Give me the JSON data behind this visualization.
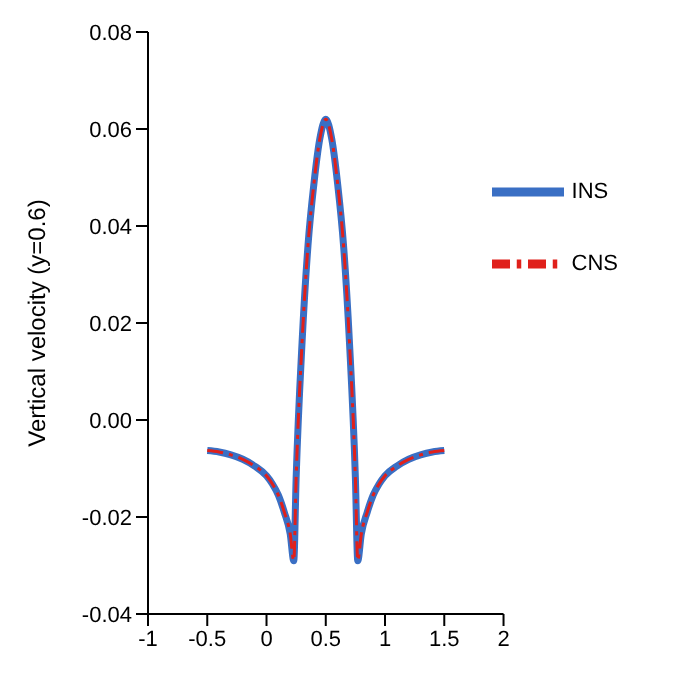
{
  "chart_data": {
    "type": "line",
    "ylabel": "Vertical velocity (y=0.6)",
    "x": [
      -0.5,
      -0.4,
      -0.3,
      -0.2,
      -0.1,
      0,
      0.05,
      0.1,
      0.15,
      0.2,
      0.23,
      0.25,
      0.3,
      0.35,
      0.4,
      0.45,
      0.5,
      0.55,
      0.6,
      0.65,
      0.7,
      0.75,
      0.77,
      0.8,
      0.85,
      0.9,
      0.95,
      1,
      1.1,
      1.2,
      1.3,
      1.4,
      1.5
    ],
    "series": [
      {
        "name": "INS",
        "color": "#3a6fc4",
        "line_style": "solid",
        "values": [
          -0.0063,
          -0.0066,
          -0.0072,
          -0.0081,
          -0.0095,
          -0.0115,
          -0.0132,
          -0.0155,
          -0.019,
          -0.0235,
          -0.029,
          -0.012,
          0.016,
          0.036,
          0.0487,
          0.058,
          0.062,
          0.058,
          0.0487,
          0.036,
          0.016,
          -0.012,
          -0.029,
          -0.0235,
          -0.019,
          -0.0155,
          -0.0132,
          -0.0115,
          -0.0095,
          -0.0081,
          -0.0072,
          -0.0066,
          -0.0063
        ]
      },
      {
        "name": "CNS",
        "color": "#e0201b",
        "line_style": "dashed",
        "values": [
          -0.0063,
          -0.0066,
          -0.0072,
          -0.0081,
          -0.0095,
          -0.0115,
          -0.0132,
          -0.0155,
          -0.019,
          -0.0235,
          -0.029,
          -0.012,
          0.016,
          0.036,
          0.0487,
          0.058,
          0.062,
          0.058,
          0.0487,
          0.036,
          0.016,
          -0.012,
          -0.029,
          -0.0235,
          -0.019,
          -0.0155,
          -0.0132,
          -0.0115,
          -0.0095,
          -0.0081,
          -0.0072,
          -0.0066,
          -0.0063
        ]
      }
    ],
    "xlim": [
      -1,
      2
    ],
    "xticks": [
      -1,
      -0.5,
      0,
      0.5,
      1,
      1.5,
      2
    ],
    "ylim": [
      -0.04,
      0.08
    ],
    "yticks": [
      -0.04,
      -0.02,
      {
        "value": 0,
        "label": "0.00"
      },
      0.02,
      0.04,
      0.06,
      0.08
    ],
    "grid": false,
    "legend": "top right",
    "marker": "none"
  }
}
